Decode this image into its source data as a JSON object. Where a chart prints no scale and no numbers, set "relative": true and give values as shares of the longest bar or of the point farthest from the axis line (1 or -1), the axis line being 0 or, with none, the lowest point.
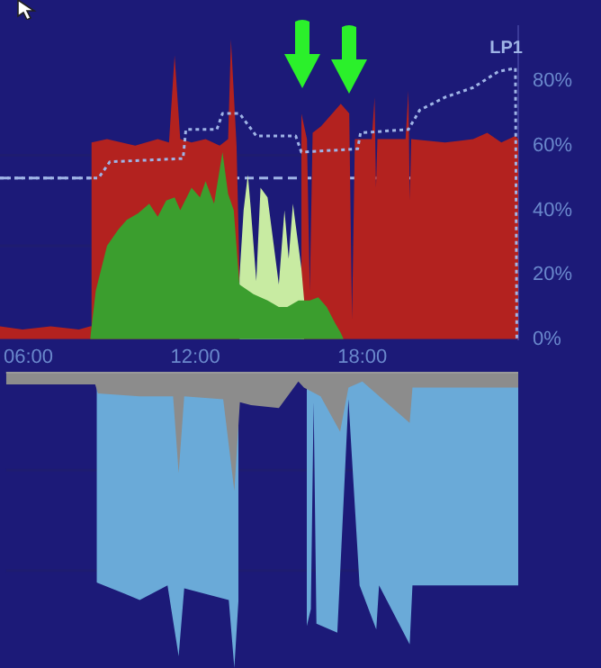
{
  "chart_data": [
    {
      "type": "area",
      "tick_labels": "y",
      "xlim": [
        5.2,
        23.6
      ],
      "ylim": [
        0,
        97
      ],
      "yticks": [
        {
          "value": 0,
          "label": "0%"
        },
        {
          "value": 20,
          "label": "20%"
        },
        {
          "value": 40,
          "label": "40%"
        },
        {
          "value": 60,
          "label": "60%"
        },
        {
          "value": 80,
          "label": "80%"
        }
      ],
      "series": [
        {
          "type": "area",
          "color": "#b3221f",
          "x": [
            5.2,
            6,
            7,
            8,
            8.4,
            8.45,
            9,
            10,
            10.8,
            11.2,
            11.4,
            11.6,
            12,
            12.5,
            13,
            13.3,
            13.4,
            13.6,
            13.7,
            13.75,
            15.85,
            15.9,
            16.1,
            16.2,
            16.3,
            16.6,
            17.0,
            17.3,
            17.6,
            17.7,
            17.8,
            18.4,
            18.5,
            18.55,
            18.6,
            19.6,
            19.7,
            19.75,
            19.8,
            21,
            22,
            22.5,
            23,
            23.5,
            23.6
          ],
          "values": [
            4,
            3,
            4,
            3,
            4,
            61,
            62,
            60,
            62,
            61,
            88,
            62,
            61,
            62,
            60,
            62,
            93,
            60,
            22,
            null,
            null,
            70,
            62,
            15,
            64,
            66,
            70,
            73,
            70,
            6,
            62,
            62,
            75,
            47,
            62,
            62,
            77,
            43,
            62,
            61,
            62,
            64,
            61,
            63,
            62
          ]
        },
        {
          "type": "area",
          "color": "#c8eba2",
          "x": [
            13.7,
            13.85,
            14.0,
            14.1,
            14.3,
            14.45,
            14.7,
            15.1,
            15.3,
            15.45,
            15.6,
            15.9,
            16.0
          ],
          "values": [
            19,
            40,
            51,
            41,
            18,
            47,
            44,
            17,
            40,
            25,
            42,
            22,
            12
          ]
        },
        {
          "type": "area",
          "color": "#3b9e2e",
          "x": [
            8.4,
            8.6,
            9.0,
            9.4,
            9.7,
            10.1,
            10.5,
            10.8,
            11.1,
            11.4,
            11.6,
            12.0,
            12.3,
            12.5,
            12.8,
            13.1,
            13.3,
            13.5,
            13.7,
            14.2,
            14.7,
            15.1,
            15.4,
            15.8,
            16.2,
            16.5,
            16.8,
            17.1,
            17.3,
            17.4
          ],
          "values": [
            0,
            15,
            29,
            34,
            37,
            39,
            42,
            38,
            43,
            44,
            40,
            47,
            44,
            49,
            42,
            58,
            45,
            40,
            17,
            14,
            12,
            10,
            10,
            12,
            12,
            13,
            10,
            5,
            2,
            0
          ]
        },
        {
          "type": "line",
          "name": "LP1",
          "color": "#9fb4e6",
          "line_style": "dotted",
          "x": [
            5.2,
            8.7,
            9.1,
            11.7,
            11.8,
            12.9,
            13.1,
            13.7,
            14.3,
            15.7,
            15.9,
            17.9,
            18.0,
            19.7,
            20.1,
            21.0,
            22.0,
            22.9,
            23.5,
            23.55
          ],
          "values": [
            50,
            50,
            55,
            56,
            65,
            65,
            70,
            70,
            63,
            63,
            58,
            59,
            64,
            65,
            71,
            75,
            78,
            83,
            84,
            0
          ]
        }
      ],
      "ref_lines": [
        {
          "axis": "y",
          "value": 57,
          "color": "#1e1c70"
        },
        {
          "axis": "y",
          "value": 29,
          "color": "#1e1c70"
        },
        {
          "axis": "y",
          "value": 50,
          "color": "#9fb4e6",
          "line_style": "dashed"
        }
      ]
    },
    {
      "type": "area",
      "relative": true,
      "xlim": [
        5.2,
        23.6
      ],
      "xticks": [
        {
          "value": 6,
          "label": "06:00"
        },
        {
          "value": 12,
          "label": "12:00"
        },
        {
          "value": 18,
          "label": "18:00"
        }
      ],
      "series": [
        {
          "type": "area",
          "color": "#6aaad8",
          "x": [
            8.45,
            9.5,
            10,
            11,
            11.4,
            11.6,
            13.2,
            13.4,
            13.55,
            13.65,
            15.95,
            16.0,
            16.15,
            16.25,
            16.35,
            17.1,
            17.5,
            17.9,
            18.5,
            18.6,
            19.7,
            19.8,
            23.6
          ],
          "values": [
            -0.71,
            -0.75,
            -0.77,
            -0.72,
            -0.96,
            -0.73,
            -0.77,
            -1,
            -0.77,
            null,
            null,
            -0.86,
            -0.8,
            -0.1,
            -0.85,
            -0.88,
            -0.09,
            -0.72,
            -0.87,
            -0.72,
            -0.92,
            -0.72,
            -0.72
          ]
        },
        {
          "type": "area",
          "color": "#8c8c8c",
          "x": [
            5.2,
            8.4,
            8.5,
            10,
            11.2,
            11.4,
            11.6,
            13,
            13.4,
            13.6,
            14,
            15,
            15.7,
            15.9,
            16.5,
            17.2,
            17.5,
            18,
            19.7,
            19.8,
            23.6
          ],
          "values": [
            -0.04,
            -0.04,
            -0.07,
            -0.08,
            -0.08,
            -0.34,
            -0.08,
            -0.09,
            -0.4,
            -0.1,
            -0.11,
            -0.12,
            -0.03,
            -0.05,
            -0.08,
            -0.2,
            -0.05,
            -0.03,
            -0.17,
            -0.05,
            -0.05
          ]
        }
      ],
      "ref_lines": [
        {
          "axis": "y",
          "value": -0.33,
          "color": "#1e1c70"
        },
        {
          "axis": "y",
          "value": -0.67,
          "color": "#1e1c70"
        }
      ]
    }
  ]
}
